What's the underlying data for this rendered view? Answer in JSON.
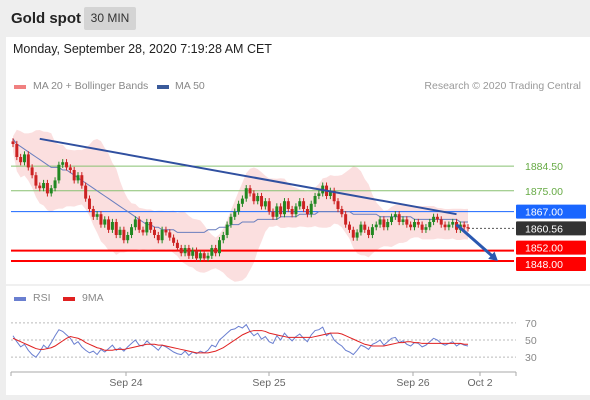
{
  "header": {
    "title": "Gold spot",
    "timeframe": "30 MIN"
  },
  "timestamp": "Monday, September 28, 2020 7:19:28 AM CET",
  "legend": {
    "ma20": {
      "label": "MA 20 + Bollinger Bands",
      "color": "#f08080"
    },
    "ma50": {
      "label": "MA 50",
      "color": "#3a5a9a"
    },
    "rsi": {
      "label": "RSI",
      "color": "#6a7fd0"
    },
    "ma9": {
      "label": "9MA",
      "color": "#e02020"
    }
  },
  "credit": "Research © 2020 Trading Central",
  "colors": {
    "up": "#228822",
    "down": "#cc2222",
    "resistance_line": "#3050a0",
    "support": "#ff0000",
    "pivot": "#1a66ff",
    "last": "#333333",
    "green_level": "#88c070",
    "arrow": "#2a58b0"
  },
  "chart_data": [
    {
      "type": "candlestick",
      "title": "",
      "xlabel": "",
      "ylabel": "",
      "x_ticks": [
        "Sep 24",
        "Sep 25",
        "Sep 26",
        "Oct 2"
      ],
      "ylim": [
        1843,
        1903
      ],
      "levels": [
        {
          "value": 1884.5,
          "label": "1884.50",
          "style": "green"
        },
        {
          "value": 1875.0,
          "label": "1875.00",
          "style": "green"
        },
        {
          "value": 1867.0,
          "label": "1867.00",
          "style": "pivot"
        },
        {
          "value": 1860.56,
          "label": "1860.56",
          "style": "last"
        },
        {
          "value": 1852.0,
          "label": "1852.00",
          "style": "support"
        },
        {
          "value": 1848.0,
          "label": "1848.00",
          "style": "support"
        }
      ],
      "close": [
        1893,
        1888,
        1886,
        1889,
        1884,
        1881,
        1877,
        1876,
        1878,
        1874,
        1876,
        1879,
        1885,
        1886,
        1884,
        1883,
        1879,
        1881,
        1877,
        1872,
        1868,
        1865,
        1866,
        1862,
        1864,
        1860,
        1863,
        1858,
        1860,
        1856,
        1858,
        1861,
        1864,
        1860,
        1859,
        1863,
        1860,
        1858,
        1856,
        1860,
        1859,
        1857,
        1855,
        1853,
        1851,
        1853,
        1850,
        1852,
        1849,
        1851,
        1849,
        1850,
        1853,
        1851,
        1856,
        1858,
        1862,
        1865,
        1867,
        1870,
        1872,
        1876,
        1874,
        1871,
        1873,
        1869,
        1871,
        1867,
        1865,
        1869,
        1866,
        1871,
        1868,
        1866,
        1869,
        1871,
        1868,
        1866,
        1870,
        1873,
        1874,
        1877,
        1873,
        1875,
        1871,
        1868,
        1866,
        1862,
        1860,
        1857,
        1859,
        1862,
        1860,
        1858,
        1861,
        1862,
        1864,
        1861,
        1863,
        1865,
        1866,
        1863,
        1864,
        1862,
        1861,
        1863,
        1862,
        1860,
        1861,
        1863,
        1865,
        1864,
        1862,
        1861,
        1862,
        1863,
        1860,
        1862,
        1861,
        1860.56
      ],
      "ma50": [
        1895,
        1893,
        1892,
        1891,
        1890,
        1889,
        1888,
        1887,
        1886,
        1885,
        1884,
        1884,
        1884,
        1883,
        1883,
        1882,
        1881,
        1880,
        1879,
        1878,
        1877,
        1876,
        1875,
        1874,
        1873,
        1872,
        1871,
        1870,
        1869,
        1868,
        1867,
        1866,
        1865,
        1864,
        1863,
        1862,
        1862,
        1861,
        1861,
        1860,
        1860,
        1860,
        1860,
        1859,
        1859,
        1859,
        1859,
        1859,
        1859,
        1859,
        1859,
        1860,
        1860,
        1860,
        1861,
        1861,
        1861,
        1862,
        1862,
        1862,
        1863,
        1863,
        1863,
        1863,
        1864,
        1864,
        1864,
        1864,
        1864,
        1864,
        1865,
        1865,
        1865,
        1865,
        1865,
        1866,
        1866,
        1866,
        1866,
        1866,
        1867,
        1867,
        1867,
        1867,
        1867,
        1867,
        1867,
        1867,
        1867,
        1866,
        1866,
        1866,
        1866,
        1866,
        1866,
        1866,
        1865,
        1865,
        1865,
        1865,
        1865,
        1865,
        1865,
        1865,
        1865,
        1864,
        1864,
        1864,
        1864,
        1864,
        1864,
        1864,
        1864,
        1864,
        1864,
        1864,
        1864,
        1863,
        1863,
        1863
      ],
      "trendline": {
        "from": [
          7,
          1895
        ],
        "to": [
          116,
          1866
        ]
      },
      "arrow": {
        "from": [
          116,
          1862
        ],
        "to": [
          125,
          1849
        ]
      }
    },
    {
      "type": "line",
      "title": "",
      "series": [
        {
          "name": "RSI",
          "values": [
            55,
            48,
            42,
            45,
            38,
            33,
            30,
            36,
            44,
            40,
            47,
            55,
            62,
            60,
            56,
            52,
            45,
            48,
            42,
            38,
            35,
            37,
            33,
            39,
            36,
            40,
            44,
            38,
            41,
            37,
            42,
            46,
            50,
            44,
            43,
            49,
            45,
            42,
            38,
            44,
            42,
            39,
            36,
            34,
            33,
            37,
            32,
            36,
            34,
            37,
            35,
            38,
            44,
            42,
            50,
            54,
            58,
            62,
            63,
            66,
            64,
            68,
            60,
            55,
            58,
            51,
            54,
            48,
            46,
            55,
            50,
            58,
            53,
            49,
            54,
            57,
            52,
            48,
            56,
            61,
            62,
            65,
            55,
            58,
            50,
            46,
            43,
            38,
            36,
            33,
            38,
            44,
            42,
            39,
            45,
            47,
            50,
            44,
            48,
            52,
            53,
            47,
            49,
            45,
            43,
            47,
            46,
            42,
            44,
            48,
            52,
            50,
            46,
            44,
            46,
            48,
            43,
            46,
            44,
            43
          ]
        },
        {
          "name": "9MA",
          "values": [
            52,
            50,
            48,
            46,
            44,
            42,
            40,
            39,
            39,
            40,
            41,
            43,
            46,
            49,
            52,
            54,
            53,
            52,
            50,
            47,
            45,
            43,
            41,
            40,
            38,
            38,
            38,
            39,
            39,
            39,
            40,
            41,
            42,
            43,
            44,
            45,
            45,
            45,
            44,
            44,
            43,
            42,
            41,
            40,
            39,
            38,
            37,
            36,
            35,
            35,
            35,
            35,
            36,
            37,
            39,
            41,
            44,
            47,
            50,
            53,
            56,
            58,
            60,
            61,
            61,
            61,
            60,
            58,
            57,
            56,
            55,
            54,
            53,
            53,
            53,
            53,
            53,
            53,
            53,
            54,
            55,
            56,
            57,
            58,
            58,
            58,
            57,
            55,
            53,
            51,
            49,
            47,
            45,
            44,
            43,
            43,
            43,
            43,
            44,
            45,
            46,
            47,
            47,
            48,
            48,
            47,
            47,
            46,
            46,
            46,
            46,
            46,
            46,
            46,
            46,
            46,
            46,
            46,
            45,
            45
          ]
        }
      ],
      "y_ticks": [
        "70",
        "50",
        "30"
      ],
      "ylim": [
        15,
        85
      ]
    }
  ]
}
